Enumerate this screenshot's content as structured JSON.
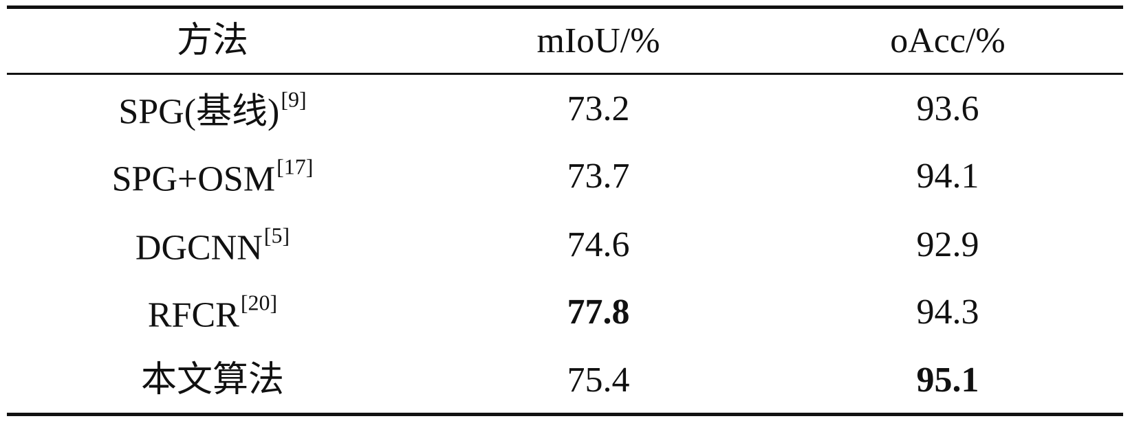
{
  "table": {
    "columns": [
      "方法",
      "mIoU/%",
      "oAcc/%"
    ],
    "rows": [
      {
        "method": "SPG(基线)",
        "ref": "[9]",
        "miou": "73.2",
        "oacc": "93.6"
      },
      {
        "method": "SPG+OSM",
        "ref": "[17]",
        "miou": "73.7",
        "oacc": "94.1"
      },
      {
        "method": "DGCNN",
        "ref": "[5]",
        "miou": "74.6",
        "oacc": "92.9"
      },
      {
        "method": "RFCR",
        "ref": "[20]",
        "miou": "77.8",
        "oacc": "94.3",
        "bold": [
          "miou"
        ]
      },
      {
        "method": "本文算法",
        "miou": "75.4",
        "oacc": "95.1",
        "bold": [
          "oacc"
        ]
      }
    ]
  }
}
